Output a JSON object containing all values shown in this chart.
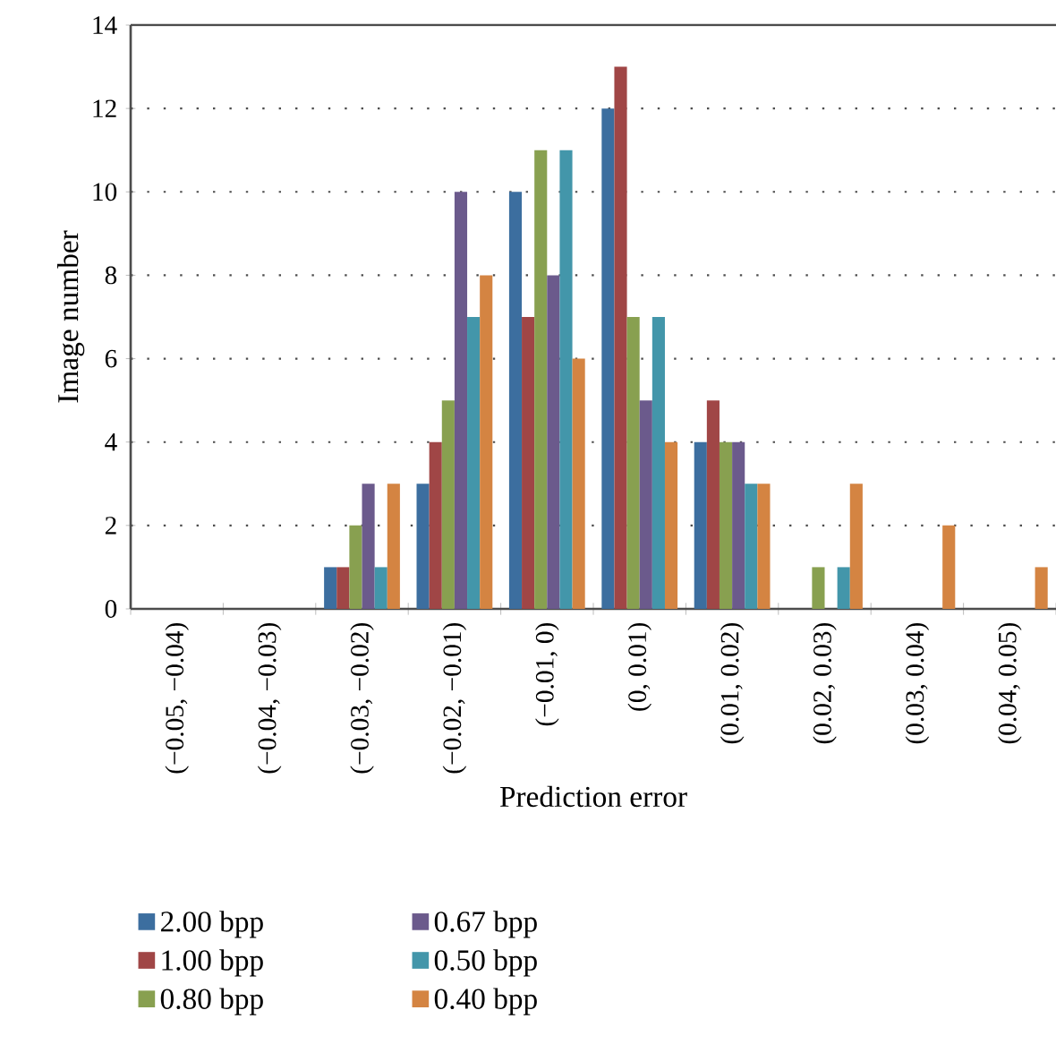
{
  "chart_data": {
    "type": "bar",
    "xlabel": "Prediction error",
    "ylabel": "Image number",
    "categories": [
      "(−0.05, −0.04)",
      "(−0.04, −0.03)",
      "(−0.03, −0.02)",
      "(−0.02, −0.01)",
      "(−0.01, 0)",
      "(0, 0.01)",
      "(0.01, 0.02)",
      "(0.02, 0.03)",
      "(0.03, 0.04)",
      "(0.04, 0.05)"
    ],
    "series": [
      {
        "name": "2.00 bpp",
        "color": "#3c6e9f",
        "values": [
          0,
          0,
          1,
          3,
          10,
          12,
          4,
          0,
          0,
          0
        ]
      },
      {
        "name": "1.00 bpp",
        "color": "#a04646",
        "values": [
          0,
          0,
          1,
          4,
          7,
          13,
          5,
          0,
          0,
          0
        ]
      },
      {
        "name": "0.80 bpp",
        "color": "#88a050",
        "values": [
          0,
          0,
          2,
          5,
          11,
          7,
          4,
          1,
          0,
          0
        ]
      },
      {
        "name": "0.67 bpp",
        "color": "#6b5a8c",
        "values": [
          0,
          0,
          3,
          10,
          8,
          5,
          4,
          0,
          0,
          0
        ]
      },
      {
        "name": "0.50 bpp",
        "color": "#4396aa",
        "values": [
          0,
          0,
          1,
          7,
          11,
          7,
          3,
          1,
          0,
          0
        ]
      },
      {
        "name": "0.40 bpp",
        "color": "#d48442",
        "values": [
          0,
          0,
          3,
          8,
          6,
          4,
          3,
          3,
          2,
          1
        ]
      }
    ],
    "ylim": [
      0,
      14
    ],
    "yticks": [
      0,
      2,
      4,
      6,
      8,
      10,
      12,
      14
    ],
    "grid": "y",
    "legend": "bottom"
  }
}
